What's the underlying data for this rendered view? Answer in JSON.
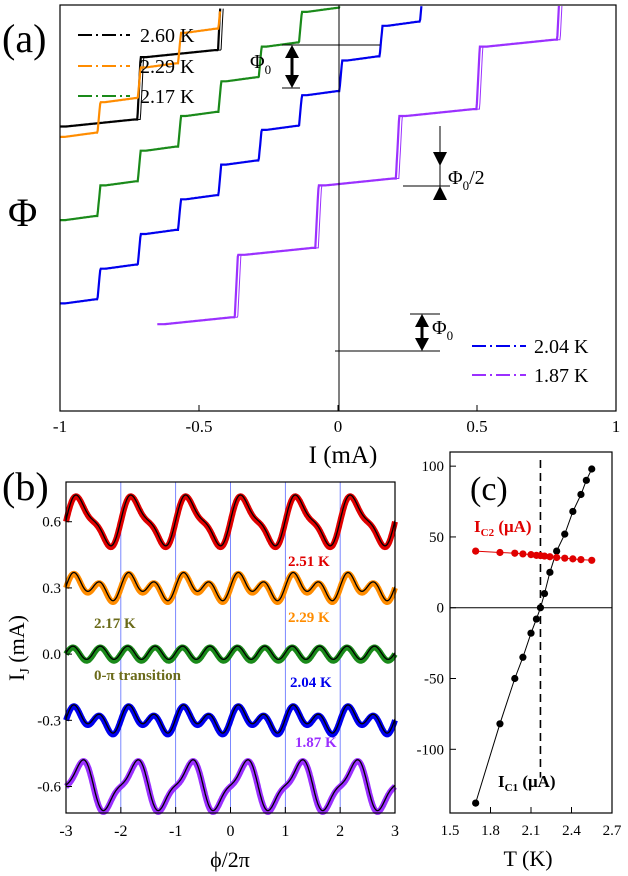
{
  "chart_data": [
    {
      "panel_label": "(a)",
      "type": "line",
      "xlabel": "I (mA)",
      "ylabel": "Φ",
      "xlim": [
        -1,
        1
      ],
      "xticks": [
        "-1",
        "-0.5",
        "0",
        "0.5",
        "1"
      ],
      "xtick_values": [
        -1,
        -0.5,
        0,
        0.5,
        1
      ],
      "step_period_mA": 0.29,
      "series": [
        {
          "name": "2.60 K",
          "color": "#000000",
          "step_type": "full",
          "x_range": [
            -1,
            0.7
          ],
          "start_level": 0.27,
          "step_height": 0.2
        },
        {
          "name": "2.29 K",
          "color": "#ff8c00",
          "step_type": "half",
          "x_range": [
            -1,
            1
          ],
          "start_level": 0.24,
          "step_height": 0.1
        },
        {
          "name": "2.17 K",
          "color": "#1a8a1a",
          "step_type": "half",
          "x_range": [
            -1,
            0.95
          ],
          "start_level": 0.0,
          "step_height": 0.1
        },
        {
          "name": "2.04 K",
          "color": "#0000ee",
          "step_type": "half",
          "x_range": [
            -1,
            1
          ],
          "start_level": -0.24,
          "step_height": 0.1
        },
        {
          "name": "1.87 K",
          "color": "#9b30ff",
          "step_type": "full",
          "x_range": [
            -0.65,
            1
          ],
          "start_level": -0.3,
          "step_height": 0.2
        }
      ],
      "legend_top": [
        "2.60 K",
        "2.29 K",
        "2.17 K"
      ],
      "legend_bottom": [
        "2.04 K",
        "1.87 K"
      ],
      "annotations": {
        "phi0_upper": "Φ",
        "phi0_upper_sub": "0",
        "half": "Φ",
        "half_sub": "0",
        "half_tail": "/2",
        "phi0_lower": "Φ",
        "phi0_lower_sub": "0"
      }
    },
    {
      "panel_label": "(b)",
      "type": "line",
      "xlabel": "ϕ/2π",
      "ylabel": "I",
      "ylabel_sub": "J",
      "ylabel_unit": " (mA)",
      "xlim": [
        -3,
        3
      ],
      "ylim": [
        -0.72,
        0.78
      ],
      "xticks": [
        "-3",
        "-2",
        "-1",
        "0",
        "1",
        "2",
        "3"
      ],
      "xtick_values": [
        -3,
        -2,
        -1,
        0,
        1,
        2,
        3
      ],
      "yticks": [
        "0.6",
        "0.3",
        "0.0",
        "-0.3",
        "-0.6"
      ],
      "ytick_values": [
        0.6,
        0.3,
        0.0,
        -0.3,
        -0.6
      ],
      "grid_x": [
        -2,
        -1,
        0,
        1,
        2
      ],
      "series": [
        {
          "name": "2.51 K",
          "color": "#e00000",
          "offset": 0.6,
          "amplitude": 0.1,
          "shape": "forward"
        },
        {
          "name": "2.29 K",
          "color": "#ff8c00",
          "offset": 0.3,
          "amplitude": 0.055,
          "shape": "double"
        },
        {
          "name": "2.17 K",
          "color": "#1a8a1a",
          "offset": 0.0,
          "amplitude": 0.03,
          "shape": "second"
        },
        {
          "name": "2.04 K",
          "color": "#0000ee",
          "offset": -0.3,
          "amplitude": 0.055,
          "shape": "double"
        },
        {
          "name": "1.87 K",
          "color": "#9b30ff",
          "offset": -0.6,
          "amplitude": 0.1,
          "shape": "backward"
        }
      ],
      "labels": {
        "t251": "2.51 K",
        "t229": "2.29 K",
        "t217": "2.17 K",
        "transition": "0-π transition",
        "t204": "2.04 K",
        "t187": "1.87 K"
      }
    },
    {
      "panel_label": "(c)",
      "type": "scatter",
      "xlabel": "T (K)",
      "xlim": [
        1.5,
        2.7
      ],
      "ylim": [
        -145,
        110
      ],
      "xticks": [
        "1.5",
        "1.8",
        "2.1",
        "2.4",
        "2.7"
      ],
      "xtick_values": [
        1.5,
        1.8,
        2.1,
        2.4,
        2.7
      ],
      "yticks": [
        "100",
        "50",
        "0",
        "-50",
        "-100"
      ],
      "ytick_values": [
        100,
        50,
        0,
        -50,
        -100
      ],
      "transition_T": 2.17,
      "series": [
        {
          "name": "IC1 (μA)",
          "color": "#000000",
          "x": [
            1.69,
            1.87,
            1.98,
            2.04,
            2.1,
            2.14,
            2.17,
            2.2,
            2.24,
            2.29,
            2.35,
            2.41,
            2.47,
            2.51,
            2.55
          ],
          "y": [
            -138,
            -82,
            -50,
            -35,
            -18,
            -8,
            0,
            10,
            25,
            40,
            52,
            68,
            80,
            90,
            98
          ]
        },
        {
          "name": "IC2 (μA)",
          "color": "#e00000",
          "x": [
            1.69,
            1.87,
            1.98,
            2.04,
            2.1,
            2.14,
            2.17,
            2.2,
            2.24,
            2.29,
            2.35,
            2.41,
            2.47,
            2.55
          ],
          "y": [
            40,
            39,
            38.5,
            38,
            37.5,
            37,
            36.8,
            36.5,
            36,
            35.5,
            35,
            34.5,
            34,
            33.5
          ]
        }
      ],
      "labels": {
        "ic2_main": "I",
        "ic2_sub": "C2",
        "ic2_unit": " (μA)",
        "ic1_main": "I",
        "ic1_sub": "C1",
        "ic1_unit": " (μA)"
      }
    }
  ]
}
